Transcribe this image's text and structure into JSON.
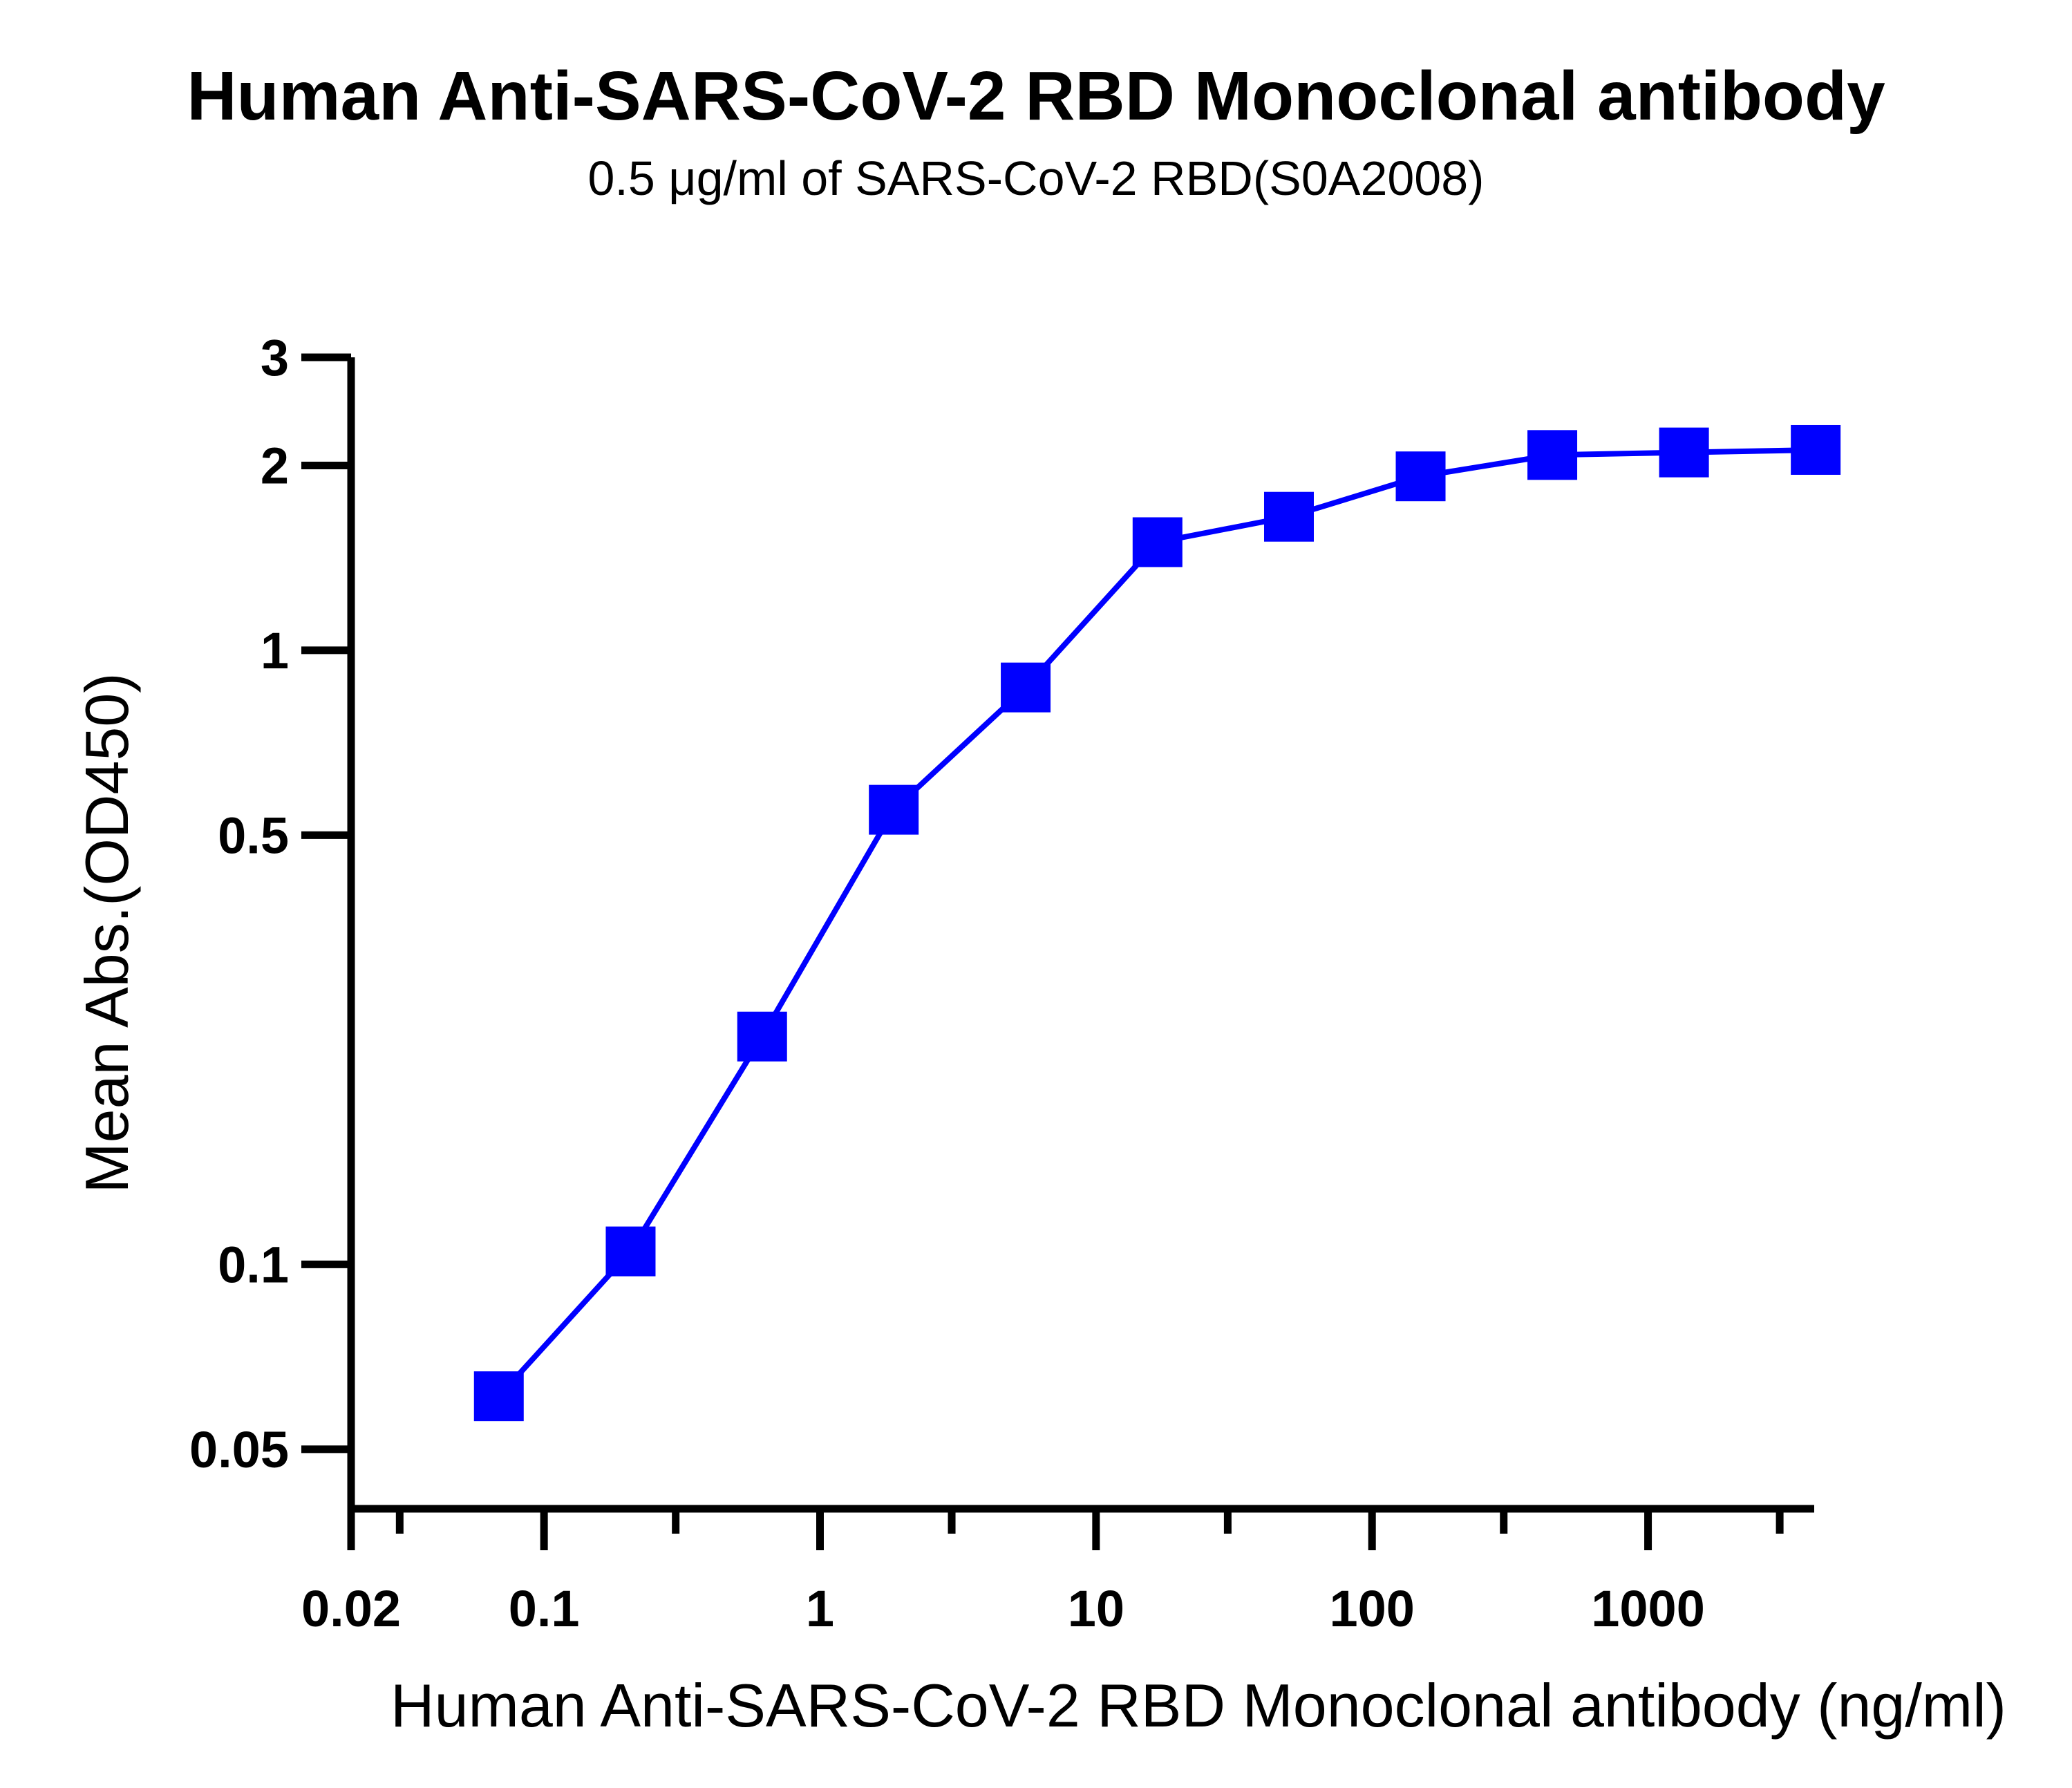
{
  "chart_data": {
    "type": "line",
    "title": "Human Anti-SARS-CoV-2 RBD Monoclonal antibody",
    "subtitle": "0.5 μg/ml of SARS-CoV-2 RBD(S0A2008)",
    "xlabel": "Human Anti-SARS-CoV-2 RBD Monoclonal antibody (ng/ml)",
    "ylabel": "Mean Abs.(OD450)",
    "x_scale": "log",
    "y_scale": "log",
    "xlim": [
      0.02,
      4000
    ],
    "ylim": [
      0.04,
      3
    ],
    "x_tick_labels": [
      "0.02",
      "0.1",
      "1",
      "10",
      "100",
      "1000"
    ],
    "x_tick_values": [
      0.02,
      0.1,
      1,
      10,
      100,
      1000
    ],
    "x_minor_ticks": [
      0.03,
      0.3,
      3,
      30,
      300,
      3000
    ],
    "y_tick_labels": [
      "0.05",
      "0.1",
      "0.5",
      "1",
      "2",
      "3"
    ],
    "y_tick_values": [
      0.05,
      0.1,
      0.5,
      1,
      2,
      3
    ],
    "grid": false,
    "legend": "none",
    "series": [
      {
        "color": "#0000ff",
        "marker": "square",
        "x": [
          0.0686,
          0.206,
          0.617,
          1.85,
          5.56,
          16.7,
          50,
          150,
          450,
          1350,
          4050
        ],
        "y": [
          0.061,
          0.105,
          0.235,
          0.55,
          0.87,
          1.5,
          1.65,
          1.92,
          2.08,
          2.1,
          2.12
        ]
      }
    ]
  }
}
